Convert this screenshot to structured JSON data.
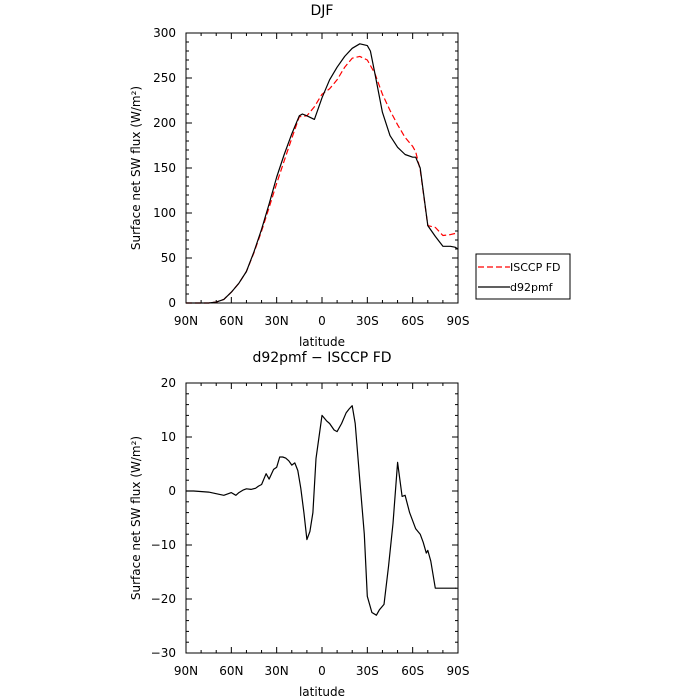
{
  "chart_data": [
    {
      "type": "line",
      "title": "DJF",
      "xlabel": "latitude",
      "ylabel": "Surface net SW flux (W/m²)",
      "xlim": [
        90,
        -90
      ],
      "ylim": [
        0,
        300
      ],
      "x_ticks": [
        90,
        60,
        30,
        0,
        -30,
        -60,
        -90
      ],
      "x_tick_labels": [
        "90N",
        "60N",
        "30N",
        "0",
        "30S",
        "60S",
        "90S"
      ],
      "y_ticks": [
        0,
        50,
        100,
        150,
        200,
        250,
        300
      ],
      "y_tick_labels": [
        "0",
        "50",
        "100",
        "150",
        "200",
        "250",
        "300"
      ],
      "legend_position": "right",
      "series": [
        {
          "name": "ISCCP FD",
          "color": "#ff0000",
          "dash": "dashed",
          "x": [
            90,
            85,
            80,
            75,
            70,
            65,
            60,
            55,
            50,
            45,
            40,
            35,
            30,
            25,
            20,
            15,
            10,
            5,
            0,
            -5,
            -10,
            -15,
            -20,
            -25,
            -30,
            -35,
            -40,
            -45,
            -50,
            -55,
            -60,
            -62,
            -65,
            -70,
            -75,
            -80,
            -85,
            -90
          ],
          "y": [
            0,
            0,
            0,
            0,
            1,
            4,
            12,
            22,
            35,
            56,
            80,
            106,
            133,
            158,
            183,
            207,
            208,
            218,
            232,
            238,
            248,
            262,
            272,
            274,
            270,
            255,
            232,
            214,
            198,
            184,
            174,
            168,
            148,
            86,
            84,
            75,
            76,
            78
          ]
        },
        {
          "name": "d92pmf",
          "color": "#000000",
          "dash": "solid",
          "x": [
            90,
            85,
            80,
            75,
            70,
            65,
            60,
            55,
            50,
            45,
            40,
            35,
            30,
            25,
            20,
            15,
            13,
            10,
            5,
            0,
            -5,
            -10,
            -15,
            -20,
            -25,
            -30,
            -32,
            -35,
            -40,
            -45,
            -50,
            -55,
            -60,
            -62,
            -65,
            -70,
            -75,
            -80,
            -85,
            -88,
            -90
          ],
          "y": [
            0,
            0,
            0,
            0,
            1,
            4,
            12,
            22,
            35,
            57,
            82,
            110,
            140,
            165,
            188,
            208,
            210,
            208,
            204,
            228,
            248,
            262,
            274,
            283,
            288,
            286,
            280,
            255,
            212,
            186,
            173,
            165,
            162,
            162,
            150,
            86,
            74,
            63,
            63,
            62,
            60
          ]
        }
      ]
    },
    {
      "type": "line",
      "title": "d92pmf − ISCCP FD",
      "xlabel": "latitude",
      "ylabel": "Surface net SW flux (W/m²)",
      "xlim": [
        90,
        -90
      ],
      "ylim": [
        -30,
        20
      ],
      "x_ticks": [
        90,
        60,
        30,
        0,
        -30,
        -60,
        -90
      ],
      "x_tick_labels": [
        "90N",
        "60N",
        "30N",
        "0",
        "30S",
        "60S",
        "90S"
      ],
      "y_ticks": [
        -30,
        -20,
        -10,
        0,
        10,
        20
      ],
      "y_tick_labels": [
        "−30",
        "−20",
        "−10",
        "0",
        "10",
        "20"
      ],
      "series": [
        {
          "color": "#000000",
          "dash": "solid",
          "x": [
            90,
            85,
            75,
            70,
            65,
            62,
            60,
            57,
            55,
            52,
            50,
            47,
            44,
            42,
            40,
            37,
            35,
            32,
            30,
            28,
            26,
            24,
            22,
            20,
            18,
            16,
            14,
            12,
            10,
            8,
            6,
            4,
            2,
            0,
            -3,
            -5,
            -8,
            -10,
            -13,
            -16,
            -18,
            -20,
            -22,
            -25,
            -28,
            -30,
            -33,
            -36,
            -38,
            -41,
            -44,
            -47,
            -50,
            -53,
            -55,
            -58,
            -62,
            -65,
            -67,
            -69,
            -70,
            -72,
            -75,
            -78,
            -81,
            -83,
            -85,
            -87,
            -89
          ],
          "y": [
            0,
            0,
            -0.2,
            -0.5,
            -0.8,
            -0.5,
            -0.3,
            -0.8,
            -0.3,
            0.2,
            0.4,
            0.3,
            0.5,
            0.9,
            1.2,
            3.2,
            2.2,
            4.0,
            4.4,
            6.3,
            6.3,
            6.1,
            5.6,
            4.8,
            5.2,
            3.8,
            0.5,
            -4.0,
            -9.0,
            -7.5,
            -4.0,
            6.0,
            10.0,
            14.0,
            13.0,
            12.5,
            11.3,
            11.0,
            12.5,
            14.5,
            15.2,
            15.8,
            12.5,
            2.0,
            -8.0,
            -19.5,
            -22.5,
            -23.0,
            -22.0,
            -21.0,
            -14.0,
            -6.0,
            5.3,
            -1.0,
            -0.8,
            -4.0,
            -7.0,
            -8.0,
            -9.5,
            -11.5,
            -11.0,
            -13.0,
            -18.0,
            -18.0,
            -18.0,
            -18.0,
            -18.0,
            -18.0,
            -18.0
          ]
        }
      ]
    }
  ]
}
